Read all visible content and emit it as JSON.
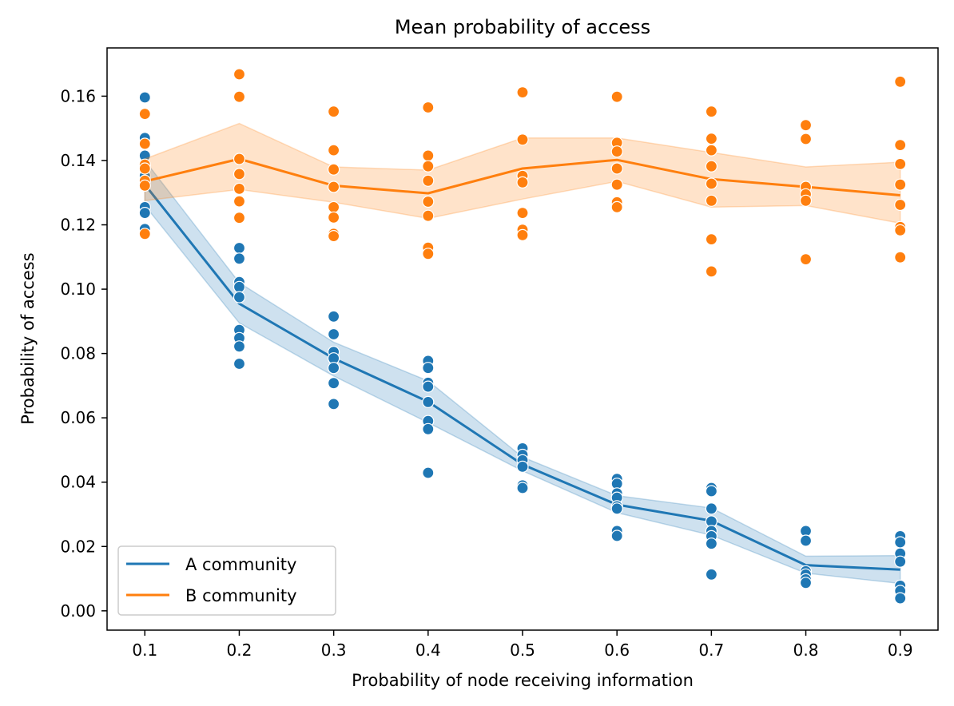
{
  "chart_data": {
    "type": "line",
    "title": "Mean probability of access",
    "xlabel": "Probability of node receiving information",
    "ylabel": "Probability of access",
    "x": [
      0.1,
      0.2,
      0.3,
      0.4,
      0.5,
      0.6,
      0.7,
      0.8,
      0.9
    ],
    "x_tick_labels": [
      "0.1",
      "0.2",
      "0.3",
      "0.4",
      "0.5",
      "0.6",
      "0.7",
      "0.8",
      "0.9"
    ],
    "xlim": [
      0.06,
      0.94
    ],
    "y_ticks": [
      0.0,
      0.02,
      0.04,
      0.06,
      0.08,
      0.1,
      0.12,
      0.14,
      0.16
    ],
    "y_tick_labels": [
      "0.00",
      "0.02",
      "0.04",
      "0.06",
      "0.08",
      "0.10",
      "0.12",
      "0.14",
      "0.16"
    ],
    "ylim": [
      -0.006,
      0.175
    ],
    "grid": false,
    "legend_position": "lower left",
    "series": [
      {
        "name": "A community",
        "color": "#1f77b4",
        "mean": [
          0.1325,
          0.0955,
          0.0785,
          0.065,
          0.0455,
          0.033,
          0.028,
          0.0142,
          0.0128
        ],
        "ci_lower": [
          0.126,
          0.0895,
          0.073,
          0.0585,
          0.0435,
          0.0305,
          0.0235,
          0.0117,
          0.0085
        ],
        "ci_upper": [
          0.14,
          0.102,
          0.0835,
          0.0715,
          0.0478,
          0.0358,
          0.032,
          0.017,
          0.0172
        ],
        "points": [
          [
            0.1596,
            0.147,
            0.1415,
            0.1377,
            0.1352,
            0.1337,
            0.1255,
            0.1237,
            0.1187
          ],
          [
            0.1128,
            0.1095,
            0.1022,
            0.1007,
            0.0975,
            0.0873,
            0.0848,
            0.0822,
            0.0768
          ],
          [
            0.0915,
            0.086,
            0.0805,
            0.0785,
            0.0755,
            0.0708,
            0.0643
          ],
          [
            0.0777,
            0.0755,
            0.0709,
            0.0697,
            0.0649,
            0.059,
            0.0565,
            0.0429
          ],
          [
            0.0505,
            0.0485,
            0.0468,
            0.0448,
            0.039,
            0.0382
          ],
          [
            0.041,
            0.0395,
            0.0365,
            0.0352,
            0.0325,
            0.0318,
            0.0248,
            0.0233
          ],
          [
            0.0382,
            0.0372,
            0.0318,
            0.0278,
            0.0248,
            0.0232,
            0.0209,
            0.0113
          ],
          [
            0.0248,
            0.0218,
            0.0123,
            0.0113,
            0.0098,
            0.0087
          ],
          [
            0.0232,
            0.0213,
            0.0178,
            0.0153,
            0.0078,
            0.0062,
            0.0039
          ]
        ]
      },
      {
        "name": "B community",
        "color": "#ff7f0e",
        "mean": [
          0.1335,
          0.1405,
          0.1322,
          0.1298,
          0.1375,
          0.1402,
          0.1342,
          0.1318,
          0.1292
        ],
        "ci_lower": [
          0.1275,
          0.131,
          0.127,
          0.122,
          0.128,
          0.1335,
          0.1255,
          0.126,
          0.1205
        ],
        "ci_upper": [
          0.1405,
          0.1515,
          0.138,
          0.137,
          0.147,
          0.147,
          0.1425,
          0.138,
          0.1395
        ],
        "points": [
          [
            0.1545,
            0.1452,
            0.1387,
            0.1375,
            0.1337,
            0.1322,
            0.1172
          ],
          [
            0.1668,
            0.1598,
            0.1405,
            0.1358,
            0.1312,
            0.1273,
            0.1222
          ],
          [
            0.1552,
            0.1432,
            0.1372,
            0.1318,
            0.1255,
            0.1223,
            0.1172,
            0.1165
          ],
          [
            0.1565,
            0.1415,
            0.1382,
            0.1337,
            0.1272,
            0.1228,
            0.1129,
            0.111
          ],
          [
            0.1612,
            0.1465,
            0.1352,
            0.1332,
            0.1237,
            0.1185,
            0.1168
          ],
          [
            0.1598,
            0.1455,
            0.1428,
            0.1375,
            0.1325,
            0.127,
            0.1255
          ],
          [
            0.1552,
            0.1468,
            0.1432,
            0.1382,
            0.1328,
            0.1275,
            0.1155,
            0.1055
          ],
          [
            0.151,
            0.1467,
            0.1318,
            0.1295,
            0.1275,
            0.1093
          ],
          [
            0.1645,
            0.1448,
            0.1389,
            0.1325,
            0.1262,
            0.1193,
            0.1183,
            0.1099
          ]
        ]
      }
    ]
  }
}
